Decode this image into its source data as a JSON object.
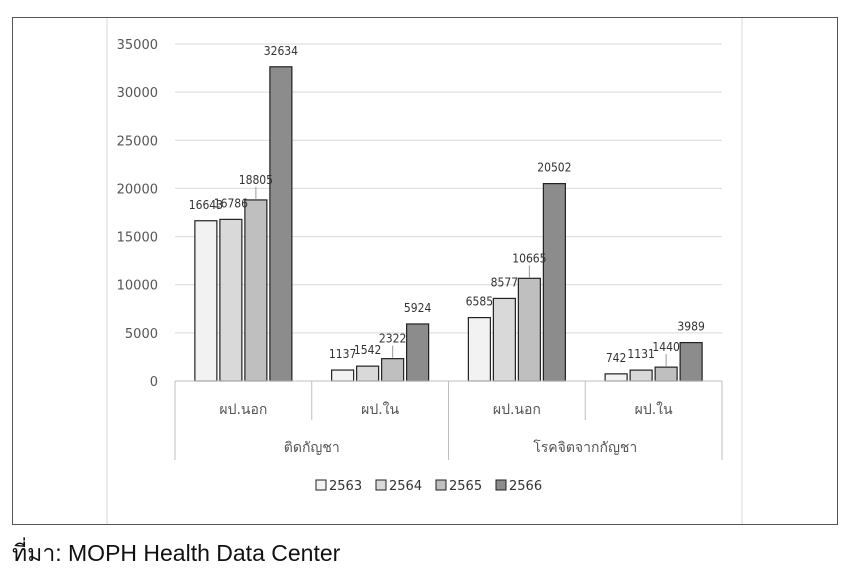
{
  "source_note": "ที่มา: MOPH Health Data Center",
  "chart_data": {
    "type": "bar",
    "ylim": [
      0,
      35000
    ],
    "yticks": [
      0,
      5000,
      10000,
      15000,
      20000,
      25000,
      30000,
      35000
    ],
    "grid": true,
    "legend_position": "bottom",
    "groups": [
      {
        "label": "ติดกัญชา",
        "categories": [
          "ผป.นอก",
          "ผป.ใน"
        ]
      },
      {
        "label": "โรคจิตจากกัญชา",
        "categories": [
          "ผป.นอก",
          "ผป.ใน"
        ]
      }
    ],
    "series": [
      {
        "name": "2563",
        "color": "#f2f2f2",
        "values": [
          16643,
          1137,
          6585,
          742
        ]
      },
      {
        "name": "2564",
        "color": "#d9d9d9",
        "values": [
          16786,
          1542,
          8577,
          1131
        ]
      },
      {
        "name": "2565",
        "color": "#bfbfbf",
        "values": [
          18805,
          2322,
          10665,
          1440
        ]
      },
      {
        "name": "2566",
        "color": "#8c8c8c",
        "values": [
          32634,
          5924,
          20502,
          3989
        ]
      }
    ]
  }
}
